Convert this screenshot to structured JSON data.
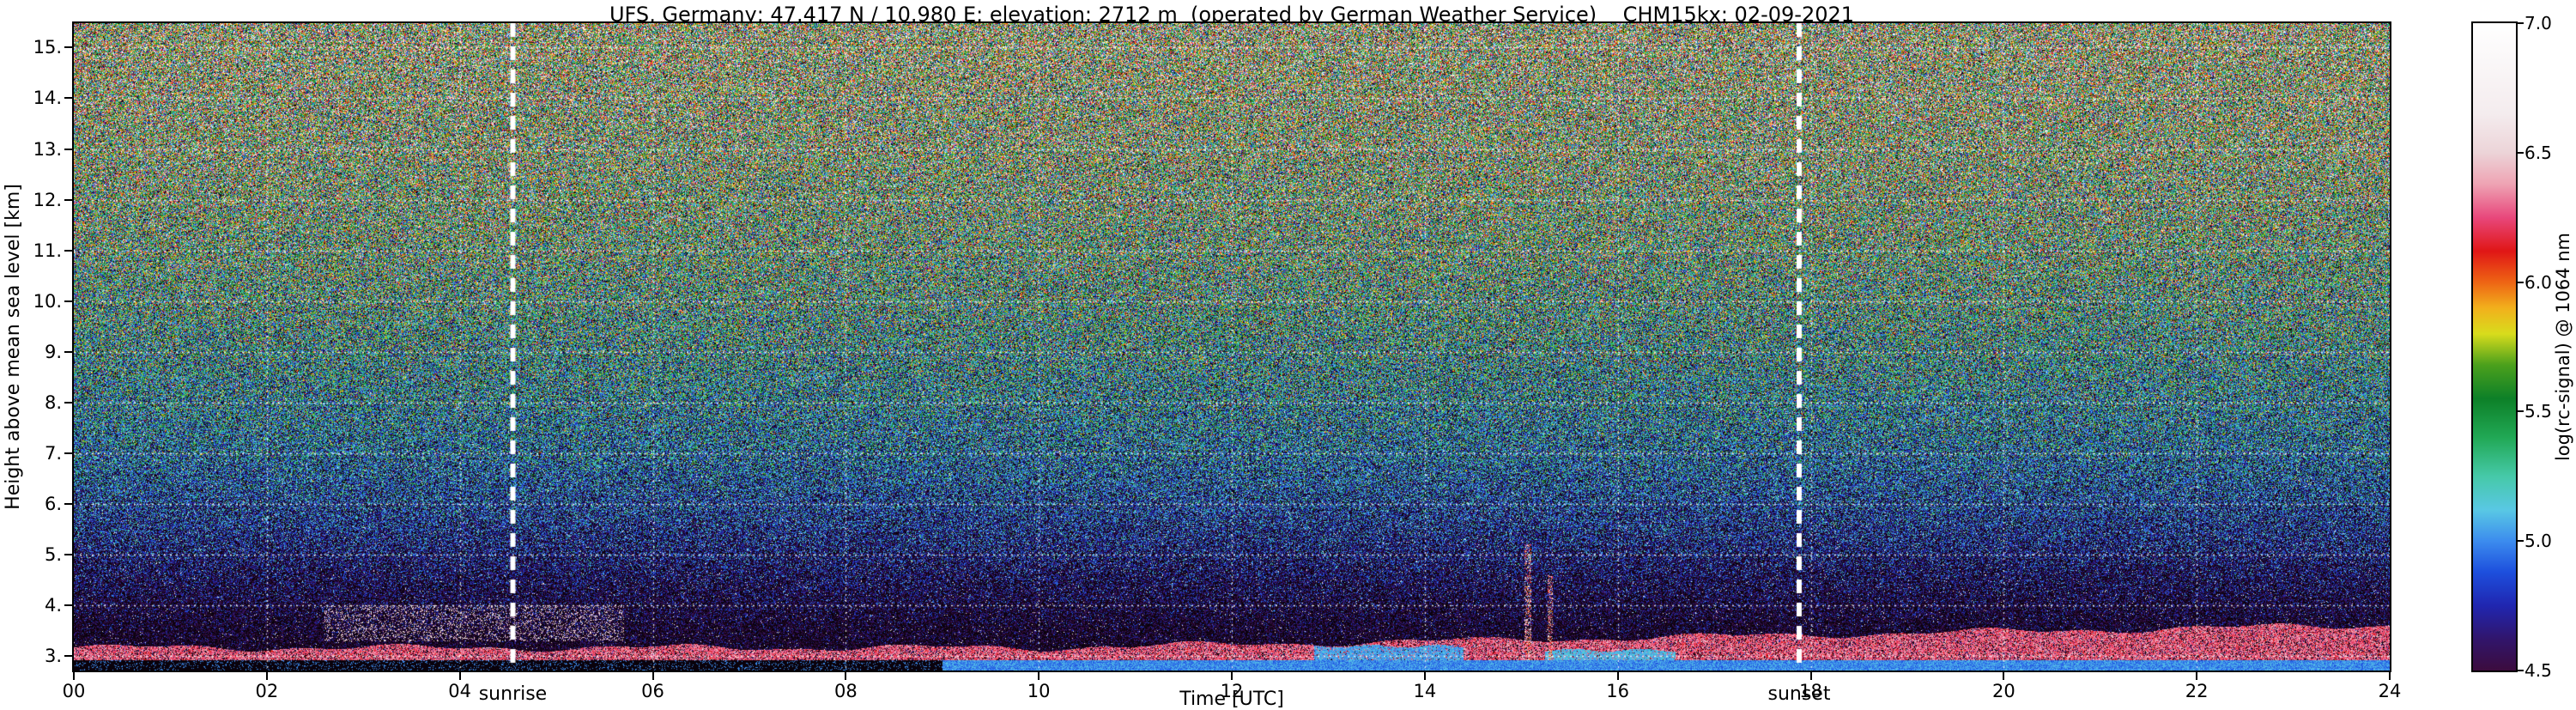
{
  "chart_data": {
    "type": "heatmap",
    "title": "UFS, Germany; 47.417 N / 10.980 E; elevation: 2712 m  (operated by German Weather Service)    CHM15kx: 02-09-2021",
    "station": {
      "name": "UFS, Germany",
      "latitude": "47.417 N",
      "longitude": "10.980 E",
      "elevation": "2712 m",
      "operator": "German Weather Service",
      "instrument": "CHM15kx",
      "date": "02-09-2021"
    },
    "xlabel": "Time [UTC]",
    "ylabel": "Height above mean sea level [km]",
    "xlim": [
      0,
      24
    ],
    "ylim": [
      2.72,
      15.48
    ],
    "x_ticks": [
      "00",
      "02",
      "04",
      "06",
      "08",
      "10",
      "12",
      "14",
      "16",
      "18",
      "20",
      "22",
      "24"
    ],
    "x_tick_values": [
      0,
      2,
      4,
      6,
      8,
      10,
      12,
      14,
      16,
      18,
      20,
      22,
      24
    ],
    "y_ticks": [
      "3.",
      "4.",
      "5.",
      "6.",
      "7.",
      "8.",
      "9.",
      "10.",
      "11.",
      "12.",
      "13.",
      "14.",
      "15."
    ],
    "y_tick_values": [
      3,
      4,
      5,
      6,
      7,
      8,
      9,
      10,
      11,
      12,
      13,
      14,
      15
    ],
    "grid": true,
    "grid_h_lines": [
      3,
      4,
      5,
      6,
      7,
      8,
      9,
      10,
      11,
      12,
      13,
      14,
      15
    ],
    "grid_v_lines": [
      2,
      4,
      6,
      8,
      10,
      12,
      14,
      16,
      18,
      20,
      22
    ],
    "annotations": {
      "sunrise": {
        "label": "sunrise",
        "time_utc": 4.55
      },
      "sunset": {
        "label": "sunset",
        "time_utc": 17.88
      }
    },
    "colorbar": {
      "label": "log(rc-signal) @ 1064 nm",
      "range": [
        4.5,
        7.0
      ],
      "ticks": [
        "4.5",
        "5.0",
        "5.5",
        "6.0",
        "6.5",
        "7.0"
      ],
      "tick_values": [
        4.5,
        5.0,
        5.5,
        6.0,
        6.5,
        7.0
      ],
      "stops": [
        {
          "v": 4.5,
          "color": "#3c0c3e"
        },
        {
          "v": 4.62,
          "color": "#31156b"
        },
        {
          "v": 4.75,
          "color": "#2026b0"
        },
        {
          "v": 4.88,
          "color": "#1d4fdd"
        },
        {
          "v": 5.0,
          "color": "#3c8cee"
        },
        {
          "v": 5.12,
          "color": "#59c8e4"
        },
        {
          "v": 5.25,
          "color": "#46c9a8"
        },
        {
          "v": 5.4,
          "color": "#21a855"
        },
        {
          "v": 5.55,
          "color": "#0d8028"
        },
        {
          "v": 5.68,
          "color": "#4ba01c"
        },
        {
          "v": 5.8,
          "color": "#d8dc1c"
        },
        {
          "v": 5.9,
          "color": "#f2b01c"
        },
        {
          "v": 6.0,
          "color": "#ee6414"
        },
        {
          "v": 6.12,
          "color": "#e01616"
        },
        {
          "v": 6.25,
          "color": "#e8487c"
        },
        {
          "v": 6.38,
          "color": "#eea4b4"
        },
        {
          "v": 6.5,
          "color": "#ecd4d8"
        },
        {
          "v": 6.65,
          "color": "#f4ecee"
        },
        {
          "v": 7.0,
          "color": "#ffffff"
        }
      ],
      "under_stops": [
        {
          "v": 3.9,
          "color": "#000000"
        },
        {
          "v": 4.42,
          "color": "#1a0620"
        }
      ]
    },
    "noise_mean_profile": [
      {
        "h": 2.72,
        "mean": 4.32,
        "sd": 0.2
      },
      {
        "h": 3.5,
        "mean": 4.38,
        "sd": 0.24
      },
      {
        "h": 4.5,
        "mean": 4.5,
        "sd": 0.3
      },
      {
        "h": 5.5,
        "mean": 4.68,
        "sd": 0.36
      },
      {
        "h": 7.0,
        "mean": 4.95,
        "sd": 0.44
      },
      {
        "h": 8.5,
        "mean": 5.15,
        "sd": 0.5
      },
      {
        "h": 10.0,
        "mean": 5.33,
        "sd": 0.55
      },
      {
        "h": 11.5,
        "mean": 5.48,
        "sd": 0.58
      },
      {
        "h": 13.0,
        "mean": 5.6,
        "sd": 0.61
      },
      {
        "h": 15.48,
        "mean": 5.74,
        "sd": 0.64
      }
    ],
    "aerosol_layer": {
      "base_height": 2.93,
      "top_left": 3.17,
      "top_right": 3.62,
      "grow_start": 10,
      "value_mean": 6.28,
      "value_sd": 0.12,
      "fill_prob": 0.78
    },
    "cyan_patches": [
      {
        "t0": 12.85,
        "t1": 14.4,
        "top": 3.2,
        "value": 5.05
      },
      {
        "t0": 15.25,
        "t1": 16.6,
        "top": 3.12,
        "value": 5.1
      }
    ],
    "surface_strip": {
      "height": 2.93,
      "dark_until": 9.0,
      "value_dark": 4.05,
      "value_blue": 5.0
    },
    "virga_streaks": [
      {
        "t": 15.07,
        "half_width": 0.035,
        "top": 5.2
      },
      {
        "t": 15.3,
        "half_width": 0.03,
        "top": 4.6
      }
    ],
    "cloud_wisp": {
      "t0": 2.6,
      "t1": 5.7,
      "h0": 3.3,
      "h1": 4.0,
      "prob": 0.18,
      "value": 6.5
    }
  }
}
